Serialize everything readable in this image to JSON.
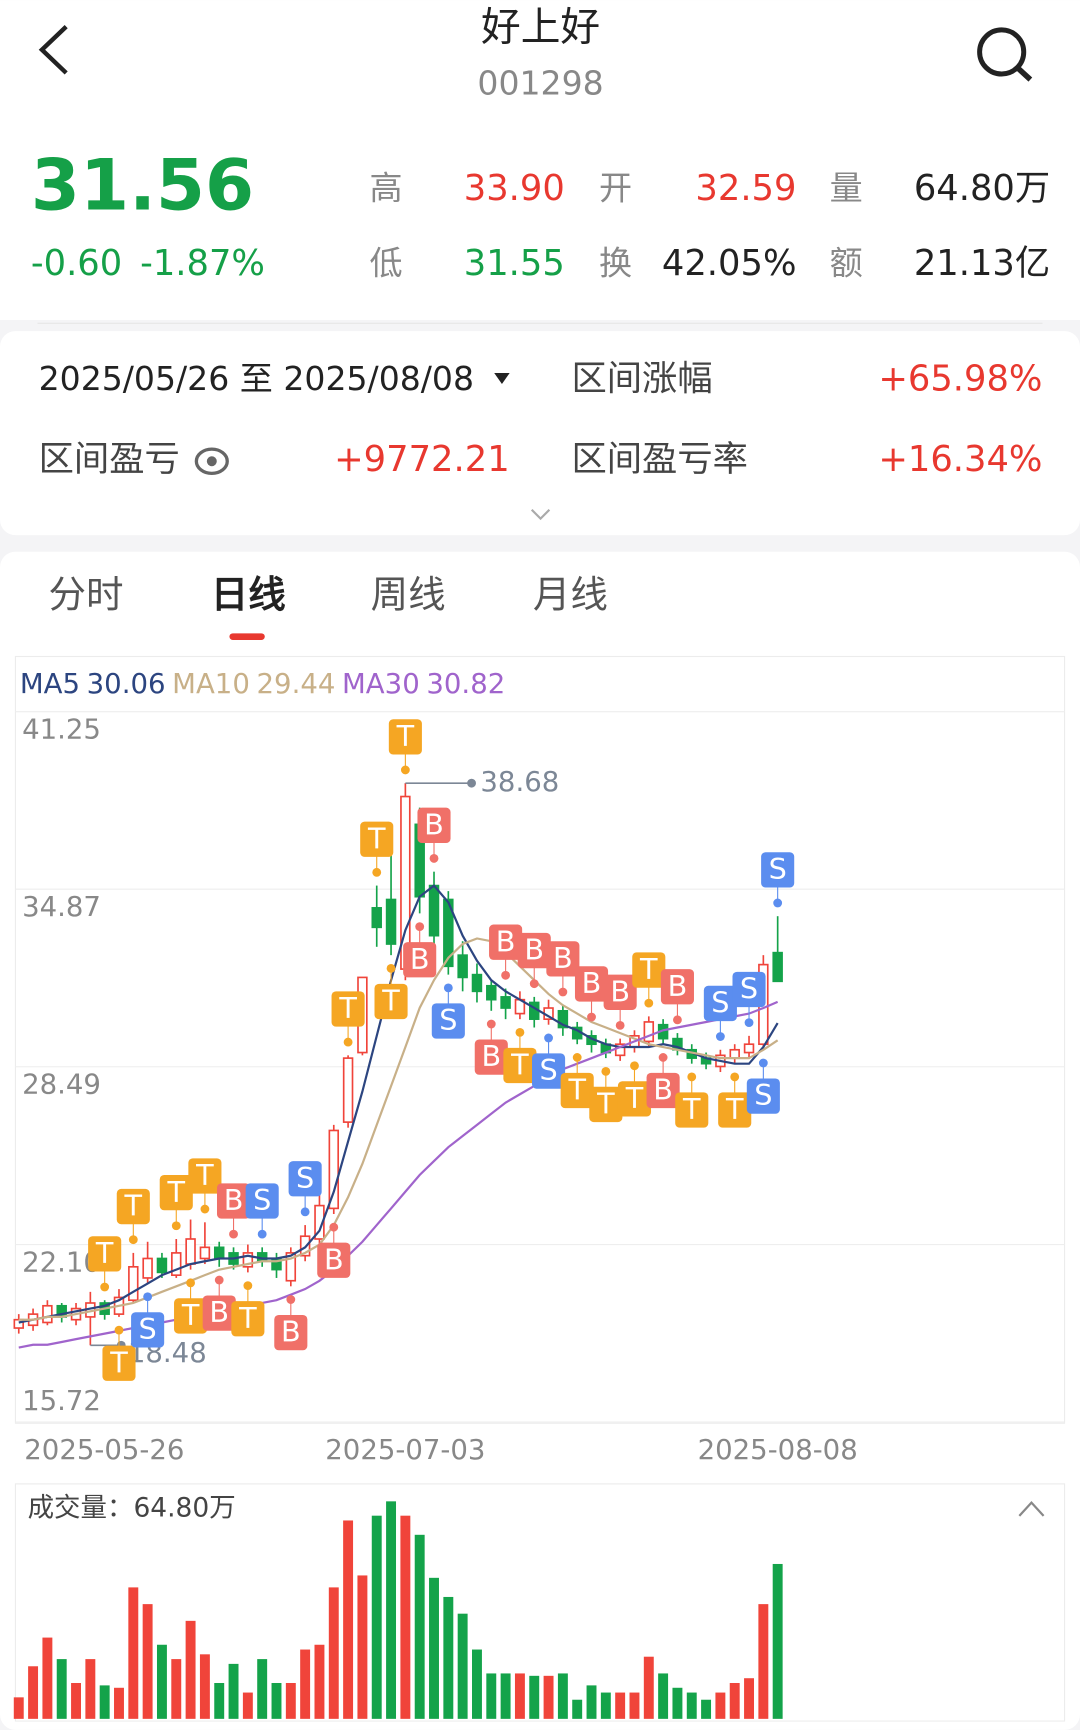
{
  "header": {
    "title": "好上好",
    "code": "001298"
  },
  "quote": {
    "price": "31.56",
    "change": "-0.60",
    "change_pct": "-1.87%",
    "fields": [
      {
        "label": "高",
        "value": "33.90"
      },
      {
        "label": "开",
        "value": "32.59"
      },
      {
        "label": "量",
        "value": "64.80万"
      },
      {
        "label": "低",
        "value": "31.55"
      },
      {
        "label": "换",
        "value": "42.05%"
      },
      {
        "label": "额",
        "value": "21.13亿"
      }
    ]
  },
  "interval": {
    "range": "2025/05/26 至 2025/08/08",
    "change_label": "区间涨幅",
    "change_value": "+65.98%",
    "pnl_label": "区间盈亏",
    "pnl_value": "+9772.21",
    "pnl_rate_label": "区间盈亏率",
    "pnl_rate_value": "+16.34%"
  },
  "tabs": [
    "分时",
    "日线",
    "周线",
    "月线"
  ],
  "chart_data": {
    "type": "candlestick",
    "categories": [
      "2025-05-26",
      null,
      null,
      null,
      null,
      null,
      null,
      null,
      null,
      null,
      null,
      null,
      null,
      null,
      null,
      null,
      null,
      null,
      null,
      null,
      null,
      null,
      null,
      null,
      null,
      null,
      null,
      "2025-07-03",
      null,
      null,
      null,
      null,
      null,
      null,
      null,
      null,
      null,
      null,
      null,
      null,
      null,
      null,
      null,
      null,
      null,
      null,
      null,
      null,
      null,
      null,
      null,
      null,
      null,
      "2025-08-08"
    ],
    "open": [
      19.1,
      19.2,
      19.3,
      19.9,
      19.4,
      19.5,
      20.0,
      19.6,
      20.1,
      20.9,
      21.6,
      21.0,
      21.4,
      21.6,
      22.0,
      21.8,
      21.3,
      21.8,
      21.6,
      20.8,
      21.7,
      22.3,
      23.4,
      26.5,
      29.0,
      34.2,
      34.5,
      32.0,
      37.2,
      35.0,
      34.5,
      32.5,
      31.8,
      31.4,
      31.0,
      30.4,
      30.8,
      30.2,
      30.5,
      29.9,
      29.6,
      29.3,
      28.9,
      29.2,
      29.4,
      30.0,
      29.5,
      29.1,
      28.8,
      28.5,
      28.8,
      29.0,
      29.3,
      32.59
    ],
    "close": [
      19.4,
      19.6,
      19.9,
      19.5,
      19.8,
      20.0,
      19.6,
      20.2,
      21.3,
      21.6,
      21.1,
      21.8,
      22.3,
      22.0,
      21.6,
      21.4,
      21.8,
      21.5,
      21.2,
      21.8,
      22.4,
      23.5,
      26.2,
      28.8,
      31.7,
      33.5,
      32.9,
      38.2,
      34.6,
      33.2,
      32.1,
      31.7,
      31.2,
      30.9,
      30.6,
      30.9,
      30.2,
      30.6,
      29.9,
      29.5,
      29.3,
      29.0,
      29.3,
      29.6,
      30.1,
      29.5,
      29.1,
      28.8,
      28.6,
      28.9,
      29.1,
      29.3,
      32.16,
      31.56
    ],
    "high": [
      19.6,
      19.8,
      20.1,
      20.0,
      20.0,
      20.4,
      20.1,
      20.5,
      21.8,
      22.2,
      21.8,
      22.3,
      23.0,
      22.9,
      22.2,
      22.0,
      22.1,
      22.0,
      21.8,
      22.0,
      22.8,
      24.0,
      26.4,
      28.9,
      31.7,
      35.0,
      36.2,
      38.68,
      37.8,
      35.5,
      34.8,
      33.0,
      32.2,
      31.6,
      31.3,
      31.2,
      31.0,
      30.9,
      30.7,
      30.1,
      29.8,
      29.5,
      29.5,
      29.8,
      30.3,
      30.2,
      29.7,
      29.3,
      29.0,
      29.1,
      29.3,
      29.6,
      32.5,
      33.9
    ],
    "low": [
      18.9,
      19.0,
      19.2,
      19.3,
      19.2,
      18.48,
      19.4,
      19.5,
      20.0,
      20.7,
      20.9,
      20.9,
      21.2,
      21.4,
      21.3,
      21.2,
      21.1,
      21.3,
      20.9,
      20.6,
      21.5,
      22.1,
      23.2,
      26.3,
      28.9,
      32.8,
      32.5,
      31.6,
      34.0,
      32.8,
      31.8,
      31.2,
      30.8,
      30.5,
      30.2,
      30.2,
      29.9,
      30.0,
      29.6,
      29.3,
      29.0,
      28.8,
      28.7,
      29.0,
      29.2,
      29.3,
      28.9,
      28.6,
      28.4,
      28.3,
      28.6,
      28.8,
      29.1,
      31.55
    ],
    "volume": [
      9,
      22,
      34,
      25,
      15,
      25,
      14,
      13,
      55,
      48,
      31,
      25,
      41,
      27,
      15,
      23,
      11,
      25,
      15,
      15,
      29,
      31,
      55,
      83,
      60,
      85,
      91,
      85,
      77,
      59,
      51,
      44,
      29,
      19,
      19,
      19,
      18,
      18,
      19,
      8,
      14,
      11,
      11,
      11,
      26,
      19,
      13,
      11,
      8,
      11,
      15,
      17,
      48,
      64.8
    ],
    "ma": [
      {
        "name": "MA5",
        "value": 30.06,
        "color": "#2c4580",
        "values": [
          19.3,
          19.4,
          19.5,
          19.6,
          19.7,
          19.8,
          19.9,
          20.1,
          20.4,
          20.7,
          21.0,
          21.2,
          21.4,
          21.5,
          21.6,
          21.6,
          21.7,
          21.6,
          21.6,
          21.7,
          22.0,
          22.6,
          24.0,
          25.8,
          27.6,
          29.6,
          31.6,
          33.4,
          34.6,
          35.0,
          34.4,
          33.2,
          32.3,
          31.6,
          31.2,
          30.9,
          30.6,
          30.3,
          30.0,
          29.8,
          29.5,
          29.3,
          29.2,
          29.2,
          29.2,
          29.3,
          29.2,
          29.0,
          28.8,
          28.7,
          28.6,
          28.6,
          29.2,
          30.06
        ]
      },
      {
        "name": "MA10",
        "value": 29.44,
        "color": "#c8b088",
        "values": [
          19.4,
          19.4,
          19.5,
          19.5,
          19.6,
          19.7,
          19.8,
          19.9,
          20.0,
          20.2,
          20.4,
          20.6,
          20.8,
          21.0,
          21.2,
          21.3,
          21.4,
          21.5,
          21.5,
          21.6,
          21.8,
          22.1,
          22.8,
          23.8,
          25.0,
          26.4,
          27.8,
          29.2,
          30.6,
          31.6,
          32.4,
          32.9,
          33.1,
          33.0,
          32.6,
          32.1,
          31.6,
          31.1,
          30.7,
          30.4,
          30.1,
          29.9,
          29.7,
          29.5,
          29.3,
          29.2,
          29.1,
          29.0,
          28.9,
          28.8,
          28.8,
          28.8,
          29.1,
          29.44
        ]
      },
      {
        "name": "MA30",
        "value": 30.82,
        "color": "#a064cc",
        "values": [
          18.4,
          18.5,
          18.5,
          18.6,
          18.7,
          18.8,
          18.9,
          19.0,
          19.1,
          19.2,
          19.3,
          19.4,
          19.5,
          19.6,
          19.7,
          19.8,
          19.9,
          20.0,
          20.1,
          20.3,
          20.5,
          20.8,
          21.2,
          21.7,
          22.2,
          22.8,
          23.4,
          24.0,
          24.6,
          25.1,
          25.6,
          26.0,
          26.4,
          26.8,
          27.2,
          27.5,
          27.8,
          28.1,
          28.4,
          28.6,
          28.8,
          29.0,
          29.2,
          29.4,
          29.6,
          29.8,
          29.9,
          30.0,
          30.1,
          30.2,
          30.3,
          30.4,
          30.6,
          30.82
        ]
      }
    ],
    "ylim": [
      15.72,
      41.25
    ],
    "yticks": [
      41.25,
      34.87,
      28.49,
      {
        "value": 22.1,
        "label": "22.10"
      },
      15.72
    ],
    "grid": true,
    "up_color": "#f0443a",
    "down_color": "#14a34a",
    "volume_title": "成交量：64.80万",
    "volume_ylim": [
      0,
      96
    ],
    "signals_above": [
      null,
      null,
      null,
      null,
      null,
      null,
      "T",
      null,
      "T",
      null,
      null,
      "T",
      null,
      "T",
      null,
      "B",
      null,
      "S",
      null,
      null,
      "S",
      null,
      null,
      "T",
      null,
      "T",
      null,
      "T",
      null,
      "B",
      null,
      null,
      null,
      null,
      "B",
      null,
      "B",
      null,
      "B",
      null,
      "B",
      null,
      "B",
      null,
      "T",
      null,
      "B",
      null,
      null,
      "S",
      null,
      "S",
      null,
      "S"
    ],
    "signals_below": [
      null,
      null,
      null,
      null,
      null,
      null,
      null,
      "T",
      null,
      "S",
      null,
      null,
      "T",
      null,
      "B",
      null,
      "T",
      null,
      null,
      "B",
      null,
      null,
      "B",
      null,
      null,
      null,
      "T",
      null,
      "B",
      null,
      "S",
      null,
      null,
      "B",
      null,
      "T",
      null,
      "S",
      null,
      "T",
      null,
      "T",
      null,
      "T",
      null,
      "B",
      null,
      "T",
      null,
      null,
      "T",
      null,
      "S",
      null
    ]
  }
}
